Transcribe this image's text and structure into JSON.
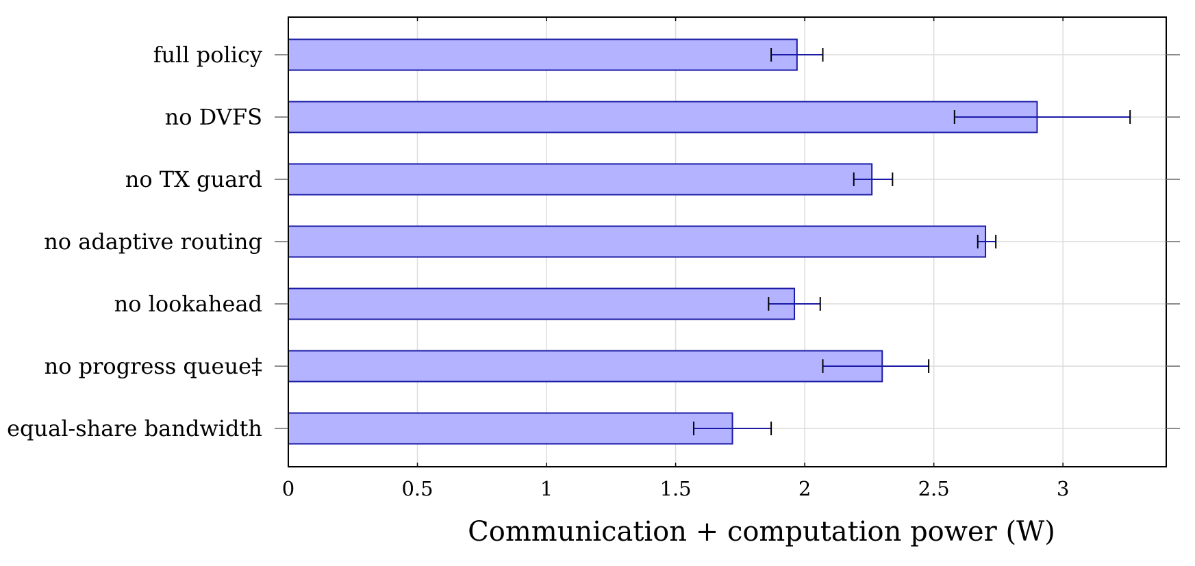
{
  "chart_data": {
    "type": "bar",
    "orientation": "horizontal",
    "categories": [
      "full policy",
      "no DVFS",
      "no TX guard",
      "no adaptive routing",
      "no lookahead",
      "no progress queue‡",
      "equal-share bandwidth"
    ],
    "values": [
      1.97,
      2.9,
      2.26,
      2.7,
      1.96,
      2.3,
      1.72
    ],
    "error_low": [
      1.87,
      2.58,
      2.19,
      2.67,
      1.86,
      2.07,
      1.57
    ],
    "error_high": [
      2.07,
      3.26,
      2.34,
      2.74,
      2.06,
      2.48,
      1.87
    ],
    "xlabel": "Communication + computation power (W)",
    "ylabel": "",
    "xlim": [
      0,
      3.4
    ],
    "xticks": [
      0,
      0.5,
      1,
      1.5,
      2,
      2.5,
      3
    ],
    "xtick_labels": [
      "0",
      "0.5",
      "1",
      "1.5",
      "2",
      "2.5",
      "3"
    ],
    "grid": true,
    "bar_fill": "#b3b3ff",
    "bar_stroke": "#1a1aa6",
    "error_color": "#1a1aa6",
    "grid_color": "#dcdcdc"
  }
}
